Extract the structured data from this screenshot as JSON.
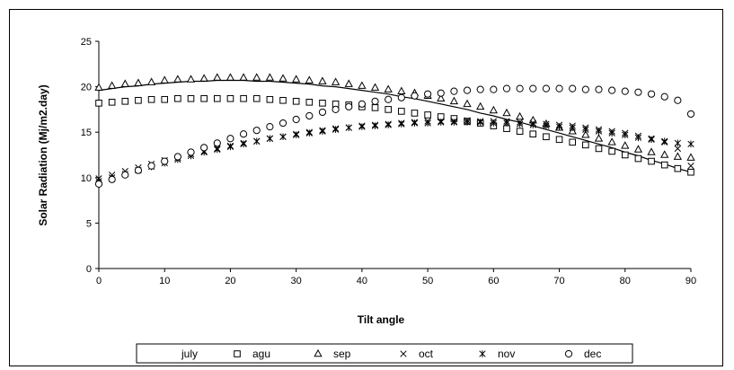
{
  "chart_data": {
    "type": "scatter",
    "xlabel": "Tilt angle",
    "ylabel": "Solar Radiation (Mj/m2.day)",
    "xlim": [
      0,
      90
    ],
    "ylim": [
      0,
      25
    ],
    "xticks": [
      0,
      10,
      20,
      30,
      40,
      50,
      60,
      70,
      80,
      90
    ],
    "yticks": [
      0,
      5,
      10,
      15,
      20,
      25
    ],
    "grid": false,
    "legend_position": "bottom",
    "x": [
      0,
      2,
      4,
      6,
      8,
      10,
      12,
      14,
      16,
      18,
      20,
      22,
      24,
      26,
      28,
      30,
      32,
      34,
      36,
      38,
      40,
      42,
      44,
      46,
      48,
      50,
      52,
      54,
      56,
      58,
      60,
      62,
      64,
      66,
      68,
      70,
      72,
      74,
      76,
      78,
      80,
      82,
      84,
      86,
      88,
      90
    ],
    "series": [
      {
        "name": "july",
        "marker": "none",
        "values": [
          19.6,
          19.8,
          20.0,
          20.1,
          20.3,
          20.4,
          20.5,
          20.6,
          20.6,
          20.7,
          20.7,
          20.7,
          20.6,
          20.6,
          20.5,
          20.4,
          20.3,
          20.1,
          20.0,
          19.8,
          19.6,
          19.4,
          19.2,
          18.9,
          18.7,
          18.4,
          18.1,
          17.8,
          17.5,
          17.1,
          16.8,
          16.4,
          16.1,
          15.7,
          15.3,
          14.9,
          14.5,
          14.1,
          13.7,
          13.3,
          12.8,
          12.4,
          11.9,
          11.5,
          11.0,
          10.6
        ]
      },
      {
        "name": "agu",
        "marker": "square",
        "values": [
          18.2,
          18.3,
          18.4,
          18.5,
          18.6,
          18.6,
          18.7,
          18.7,
          18.7,
          18.7,
          18.7,
          18.7,
          18.7,
          18.6,
          18.5,
          18.4,
          18.3,
          18.2,
          18.1,
          18.0,
          17.8,
          17.7,
          17.5,
          17.3,
          17.1,
          16.9,
          16.7,
          16.5,
          16.2,
          16.0,
          15.7,
          15.4,
          15.1,
          14.8,
          14.5,
          14.2,
          13.9,
          13.6,
          13.2,
          12.9,
          12.5,
          12.1,
          11.8,
          11.4,
          11.0,
          10.6
        ]
      },
      {
        "name": "sep",
        "marker": "triangle",
        "values": [
          19.9,
          20.1,
          20.3,
          20.4,
          20.5,
          20.7,
          20.8,
          20.8,
          20.9,
          21.0,
          21.0,
          21.0,
          21.0,
          21.0,
          20.9,
          20.8,
          20.7,
          20.6,
          20.5,
          20.3,
          20.1,
          19.9,
          19.7,
          19.5,
          19.3,
          19.0,
          18.7,
          18.4,
          18.1,
          17.8,
          17.4,
          17.1,
          16.7,
          16.3,
          15.9,
          15.5,
          15.1,
          14.7,
          14.3,
          13.9,
          13.5,
          13.1,
          12.8,
          12.5,
          12.3,
          12.2
        ]
      },
      {
        "name": "oct",
        "marker": "x",
        "values": [
          9.9,
          10.3,
          10.7,
          11.1,
          11.5,
          11.9,
          12.2,
          12.6,
          12.9,
          13.2,
          13.5,
          13.8,
          14.0,
          14.3,
          14.5,
          14.8,
          15.0,
          15.2,
          15.4,
          15.5,
          15.7,
          15.8,
          15.9,
          16.0,
          16.1,
          16.2,
          16.2,
          16.2,
          16.3,
          16.2,
          16.2,
          16.2,
          16.1,
          16.0,
          15.9,
          15.8,
          15.7,
          15.5,
          15.3,
          15.1,
          14.9,
          14.6,
          14.3,
          13.9,
          13.2,
          11.3
        ]
      },
      {
        "name": "nov",
        "marker": "asterisk",
        "values": [
          9.6,
          10.0,
          10.4,
          10.8,
          11.2,
          11.6,
          12.0,
          12.4,
          12.8,
          13.1,
          13.4,
          13.7,
          14.0,
          14.3,
          14.5,
          14.7,
          14.9,
          15.1,
          15.3,
          15.5,
          15.6,
          15.7,
          15.8,
          15.9,
          16.0,
          16.0,
          16.1,
          16.1,
          16.1,
          16.1,
          16.0,
          16.0,
          15.9,
          15.8,
          15.7,
          15.6,
          15.5,
          15.3,
          15.1,
          14.9,
          14.7,
          14.4,
          14.2,
          14.0,
          13.8,
          13.7
        ]
      },
      {
        "name": "dec",
        "marker": "circle",
        "values": [
          9.3,
          9.8,
          10.3,
          10.8,
          11.3,
          11.8,
          12.3,
          12.8,
          13.3,
          13.8,
          14.3,
          14.8,
          15.2,
          15.6,
          16.0,
          16.4,
          16.8,
          17.2,
          17.5,
          17.8,
          18.1,
          18.4,
          18.6,
          18.8,
          19.0,
          19.2,
          19.3,
          19.5,
          19.6,
          19.7,
          19.7,
          19.8,
          19.8,
          19.8,
          19.8,
          19.8,
          19.8,
          19.7,
          19.7,
          19.6,
          19.5,
          19.4,
          19.2,
          18.9,
          18.5,
          17.0
        ]
      }
    ]
  }
}
